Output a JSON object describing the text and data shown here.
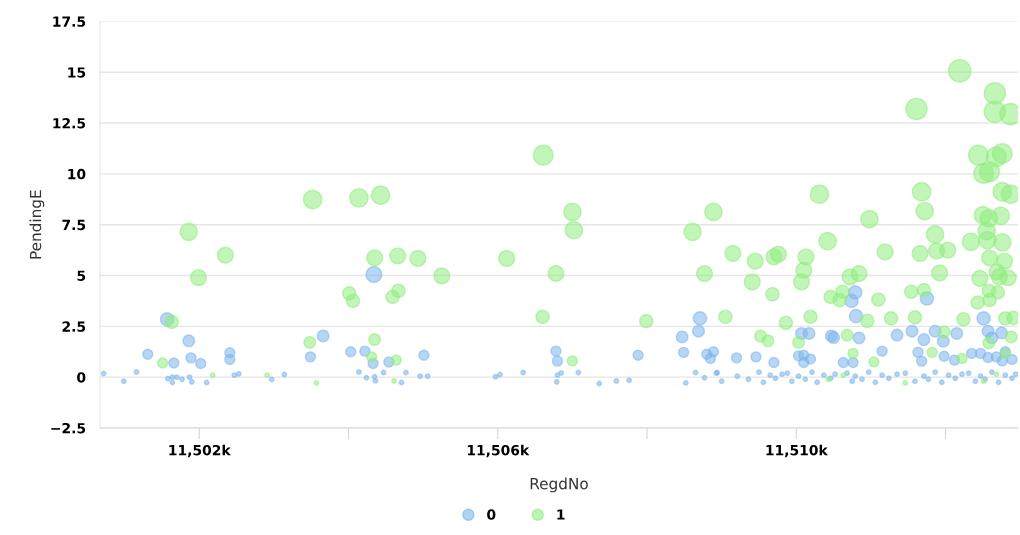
{
  "chart_data": {
    "type": "bubble",
    "xlabel": "RegdNo",
    "ylabel": "PendingE",
    "xlim": [
      11500670,
      11512970
    ],
    "ylim": [
      -2.5,
      17.5
    ],
    "xticks": [
      {
        "value": 11502000,
        "label": "11,502k"
      },
      {
        "value": 11504000,
        "label": null
      },
      {
        "value": 11506000,
        "label": "11,506k"
      },
      {
        "value": 11508000,
        "label": null
      },
      {
        "value": 11510000,
        "label": "11,510k"
      },
      {
        "value": 11512000,
        "label": null
      }
    ],
    "yticks": [
      {
        "value": -2.5,
        "label": "−2.5"
      },
      0,
      2.5,
      5,
      7.5,
      10,
      12.5,
      15,
      17.5
    ],
    "grid": "y",
    "legend": "bottom",
    "marker": "circle",
    "series": [
      {
        "name": "0",
        "color": "#7cb5ec",
        "x": [
          11501570,
          11501860,
          11501310,
          11501660,
          11501890,
          11502020,
          11502410,
          11502410,
          11503660,
          11503490,
          11504030,
          11504220,
          11504340,
          11504330,
          11504540,
          11500720,
          11500990,
          11501160,
          11501580,
          11501640,
          11501700,
          11501770,
          11501640,
          11501870,
          11501900,
          11502100,
          11502470,
          11502530,
          11502970,
          11503140,
          11504140,
          11504240,
          11504350,
          11504360,
          11504470,
          11504710,
          11504770,
          11505010,
          11506780,
          11506800,
          11507880,
          11508710,
          11508690,
          11508470,
          11508490,
          11508800,
          11508850,
          11508890,
          11504960,
          11505060,
          11505970,
          11506030,
          11506340,
          11506800,
          11506850,
          11506790,
          11507080,
          11507360,
          11507590,
          11507760,
          11508520,
          11508650,
          11508770,
          11508940,
          11511750,
          11510790,
          11510740,
          11510800,
          11512510,
          11510070,
          11510170,
          11510470,
          11510500,
          11510840,
          11511350,
          11511550,
          11511710,
          11511860,
          11511970,
          11512150,
          11512570,
          11512750,
          11512620,
          11509200,
          11509460,
          11509700,
          11510030,
          11510100,
          11510190,
          11510100,
          11510630,
          11510760,
          11511150,
          11511630,
          11511680,
          11511980,
          11512120,
          11512350,
          11512470,
          11512570,
          11512680,
          11512760,
          11512890,
          11512800,
          11508930,
          11509000,
          11509210,
          11509360,
          11509500,
          11509560,
          11509650,
          11509720,
          11509810,
          11509880,
          11509940,
          11510030,
          11510120,
          11510210,
          11510280,
          11510370,
          11510460,
          11510520,
          11510680,
          11510750,
          11510790,
          11510880,
          11510970,
          11511060,
          11511150,
          11511240,
          11511350,
          11511460,
          11511590,
          11511710,
          11511770,
          11511860,
          11511950,
          11512040,
          11512130,
          11512220,
          11512310,
          11512400,
          11512470,
          11512530,
          11512620,
          11512710,
          11512800,
          11512890,
          11512940
        ],
        "values": [
          2.84,
          1.79,
          1.13,
          0.7,
          0.95,
          0.67,
          1.2,
          0.87,
          2.03,
          1.0,
          1.25,
          1.28,
          5.05,
          0.67,
          0.75,
          0.18,
          -0.2,
          0.26,
          -0.07,
          0,
          0,
          -0.1,
          -0.26,
          0,
          -0.23,
          -0.26,
          0.1,
          0.16,
          -0.11,
          0.13,
          0.26,
          -0.03,
          0.02,
          -0.18,
          0.23,
          -0.26,
          0.23,
          1.08,
          1.28,
          0.79,
          1.08,
          2.89,
          2.26,
          1.98,
          1.22,
          1.13,
          0.92,
          1.25,
          0.05,
          0.05,
          0.02,
          0.13,
          0.23,
          0.1,
          0.21,
          -0.23,
          0.23,
          -0.31,
          -0.18,
          -0.15,
          -0.28,
          0.23,
          -0.03,
          0.23,
          3.87,
          4.17,
          3.75,
          3.0,
          2.89,
          2.15,
          2.15,
          2.03,
          1.95,
          1.93,
          2.07,
          2.26,
          1.85,
          2.26,
          1.77,
          2.15,
          2.26,
          2.18,
          1.93,
          0.95,
          1.0,
          0.72,
          1.05,
          1.08,
          0.89,
          0.72,
          0.72,
          0.72,
          1.28,
          1.22,
          0.79,
          1.03,
          0.84,
          1.17,
          1.17,
          0.97,
          1.0,
          0.8,
          0.87,
          1.25,
          0.2,
          -0.2,
          0.05,
          -0.1,
          0.25,
          -0.25,
          0.1,
          -0.05,
          0.15,
          0.2,
          -0.2,
          0.05,
          -0.1,
          0.25,
          -0.25,
          0.1,
          -0.05,
          0.15,
          0.2,
          -0.2,
          0.05,
          -0.1,
          0.25,
          -0.25,
          0.1,
          -0.05,
          0.15,
          0.2,
          -0.2,
          0.05,
          -0.1,
          0.25,
          -0.25,
          0.1,
          -0.05,
          0.15,
          0.2,
          -0.2,
          0.05,
          -0.1,
          0.25,
          -0.25,
          0.1,
          -0.05,
          0.15
        ],
        "sizes": [
          0.35,
          0.27,
          0.2,
          0.2,
          0.2,
          0.2,
          0.2,
          0.2,
          0.27,
          0.2,
          0.2,
          0.2,
          0.5,
          0.2,
          0.2,
          0.04,
          0.04,
          0.04,
          0.04,
          0.04,
          0.04,
          0.04,
          0.04,
          0.04,
          0.04,
          0.04,
          0.04,
          0.04,
          0.04,
          0.04,
          0.04,
          0.04,
          0.04,
          0.04,
          0.04,
          0.04,
          0.04,
          0.2,
          0.2,
          0.2,
          0.2,
          0.35,
          0.27,
          0.27,
          0.2,
          0.2,
          0.2,
          0.2,
          0.04,
          0.04,
          0.04,
          0.04,
          0.04,
          0.04,
          0.04,
          0.04,
          0.04,
          0.04,
          0.04,
          0.04,
          0.04,
          0.04,
          0.04,
          0.04,
          0.35,
          0.35,
          0.35,
          0.35,
          0.35,
          0.27,
          0.27,
          0.27,
          0.27,
          0.27,
          0.27,
          0.27,
          0.27,
          0.27,
          0.27,
          0.27,
          0.27,
          0.27,
          0.27,
          0.2,
          0.2,
          0.2,
          0.2,
          0.2,
          0.2,
          0.2,
          0.2,
          0.2,
          0.2,
          0.2,
          0.2,
          0.2,
          0.2,
          0.2,
          0.2,
          0.2,
          0.2,
          0.2,
          0.2,
          0.2,
          0.04,
          0.04,
          0.04,
          0.04,
          0.04,
          0.04,
          0.04,
          0.04,
          0.04,
          0.04,
          0.04,
          0.04,
          0.04,
          0.04,
          0.04,
          0.04,
          0.04,
          0.04,
          0.04,
          0.04,
          0.04,
          0.04,
          0.04,
          0.04,
          0.04,
          0.04,
          0.04,
          0.04,
          0.04,
          0.04,
          0.04,
          0.04,
          0.04,
          0.04,
          0.04,
          0.04,
          0.04,
          0.04,
          0.04,
          0.04,
          0.04,
          0.04,
          0.04,
          0.04,
          0.04
        ]
      },
      {
        "name": "1",
        "color": "#90ed7d",
        "x": [
          11501860,
          11502350,
          11501990,
          11503520,
          11504140,
          11504430,
          11504350,
          11504660,
          11504010,
          11504060,
          11504590,
          11504670,
          11501630,
          11503480,
          11504350,
          11501510,
          11504310,
          11504640,
          11502180,
          11502910,
          11503570,
          11504610,
          11506610,
          11507000,
          11507020,
          11508890,
          11508610,
          11504930,
          11505250,
          11506120,
          11506780,
          11508770,
          11506600,
          11507990,
          11507000,
          11512190,
          11512660,
          11511610,
          11512660,
          11512870,
          11512440,
          11512760,
          11512680,
          11512510,
          11512590,
          11510310,
          11511680,
          11511720,
          11512760,
          11512870,
          11510980,
          11512500,
          11512580,
          11512740,
          11510420,
          11511860,
          11512550,
          11512340,
          11512560,
          11512760,
          11509150,
          11509450,
          11509700,
          11509760,
          11510130,
          11510100,
          11510070,
          11509410,
          11509680,
          11511190,
          11511660,
          11511880,
          11512030,
          11512590,
          11512790,
          11511920,
          11510720,
          11510840,
          11512460,
          11512690,
          11512720,
          11512840,
          11510460,
          11510580,
          11510620,
          11511100,
          11511540,
          11511710,
          11512430,
          11512590,
          11512700,
          11512580,
          11509050,
          11509860,
          11510190,
          11510950,
          11511270,
          11511590,
          11512240,
          11512800,
          11512910,
          11509520,
          11509620,
          11510030,
          11510680,
          11511980,
          11512880,
          11512580,
          11510760,
          11511040,
          11511820,
          11512220,
          11512800,
          11510430,
          11511460,
          11510630,
          11512510,
          11512680
        ],
        "values": [
          7.15,
          6.0,
          4.9,
          8.74,
          8.82,
          8.95,
          5.87,
          5.97,
          4.12,
          3.75,
          3.95,
          4.25,
          2.72,
          1.71,
          1.85,
          0.7,
          1.0,
          0.84,
          0.1,
          0.1,
          -0.28,
          -0.18,
          10.92,
          8.13,
          7.23,
          8.13,
          7.15,
          5.84,
          4.98,
          5.84,
          5.1,
          5.1,
          2.97,
          2.76,
          0.8,
          15.07,
          13.96,
          13.19,
          13.05,
          12.94,
          10.92,
          11.0,
          10.84,
          10.02,
          10.1,
          9.0,
          9.12,
          8.17,
          9.12,
          9.0,
          7.77,
          7.97,
          7.81,
          7.94,
          6.69,
          7.02,
          7.18,
          6.66,
          6.74,
          6.63,
          6.09,
          5.71,
          5.92,
          6.05,
          5.92,
          5.26,
          4.69,
          4.69,
          4.08,
          6.16,
          6.09,
          6.21,
          6.25,
          5.87,
          5.71,
          5.13,
          4.93,
          5.1,
          4.86,
          5.18,
          4.93,
          4.89,
          3.95,
          3.79,
          4.2,
          3.82,
          4.2,
          4.28,
          3.67,
          3.79,
          4.17,
          4.25,
          2.97,
          2.67,
          2.97,
          2.77,
          2.89,
          2.94,
          2.85,
          2.89,
          2.92,
          2.02,
          1.79,
          1.71,
          2.07,
          2.23,
          1.98,
          1.69,
          1.17,
          0.75,
          1.22,
          0.92,
          1.17,
          -0.11,
          -0.28,
          0.1,
          -0.2,
          0.15
        ],
        "sizes": [
          0.6,
          0.5,
          0.5,
          0.68,
          0.68,
          0.68,
          0.5,
          0.5,
          0.35,
          0.35,
          0.35,
          0.35,
          0.35,
          0.27,
          0.27,
          0.2,
          0.2,
          0.2,
          0.04,
          0.04,
          0.04,
          0.04,
          0.78,
          0.6,
          0.6,
          0.6,
          0.6,
          0.5,
          0.5,
          0.5,
          0.5,
          0.5,
          0.35,
          0.35,
          0.2,
          1,
          0.9,
          0.9,
          0.9,
          0.9,
          0.78,
          0.78,
          0.78,
          0.78,
          0.78,
          0.68,
          0.68,
          0.6,
          0.68,
          0.68,
          0.6,
          0.6,
          0.6,
          0.6,
          0.6,
          0.6,
          0.6,
          0.6,
          0.6,
          0.6,
          0.5,
          0.5,
          0.5,
          0.5,
          0.5,
          0.5,
          0.5,
          0.5,
          0.35,
          0.5,
          0.5,
          0.5,
          0.5,
          0.5,
          0.5,
          0.5,
          0.5,
          0.5,
          0.5,
          0.5,
          0.5,
          0.5,
          0.35,
          0.35,
          0.35,
          0.35,
          0.35,
          0.35,
          0.35,
          0.35,
          0.35,
          0.35,
          0.35,
          0.35,
          0.35,
          0.35,
          0.35,
          0.35,
          0.35,
          0.35,
          0.35,
          0.27,
          0.27,
          0.27,
          0.27,
          0.27,
          0.27,
          0.27,
          0.2,
          0.2,
          0.2,
          0.2,
          0.2,
          0.04,
          0.04,
          0.04,
          0.04,
          0.04
        ]
      }
    ]
  }
}
